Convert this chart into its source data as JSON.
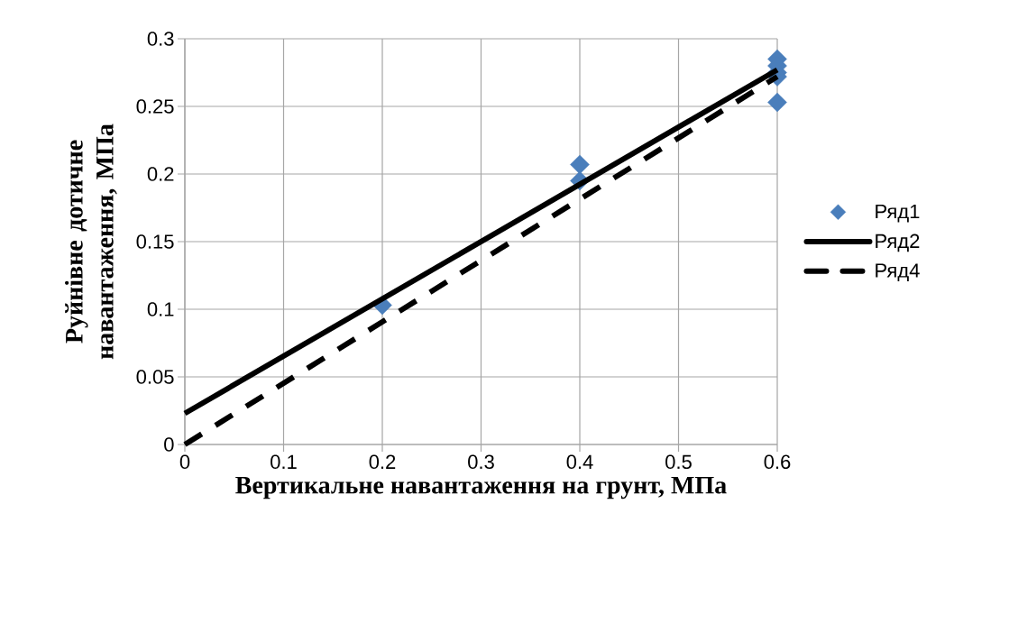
{
  "chart_data": {
    "type": "line",
    "xlabel": "Вертикальне навантаження на грунт, МПа",
    "ylabel": "Руйнівне дотичне навантаження, МПа",
    "xlim": [
      0,
      0.6
    ],
    "xticks": [
      0,
      0.1,
      0.2,
      0.3,
      0.4,
      0.5,
      0.6
    ],
    "ylim": [
      0,
      0.3
    ],
    "yticks": [
      0,
      0.05,
      0.1,
      0.15,
      0.2,
      0.25,
      0.3
    ],
    "grid": true,
    "legend": "right",
    "series": [
      {
        "name": "Ряд1",
        "type": "scatter",
        "marker": "diamond",
        "color": "#4a7ebb",
        "x": [
          0.2,
          0.4,
          0.4,
          0.6,
          0.6,
          0.6,
          0.6,
          0.6
        ],
        "values": [
          0.103,
          0.195,
          0.207,
          0.285,
          0.28,
          0.275,
          0.272,
          0.253
        ]
      },
      {
        "name": "Ряд2",
        "line_style": "solid",
        "color": "#000000",
        "x": [
          0,
          0.6
        ],
        "values": [
          0.023,
          0.277
        ]
      },
      {
        "name": "Ряд4",
        "line_style": "dashed",
        "color": "#000000",
        "x": [
          0,
          0.6
        ],
        "values": [
          0,
          0.272
        ]
      }
    ]
  }
}
